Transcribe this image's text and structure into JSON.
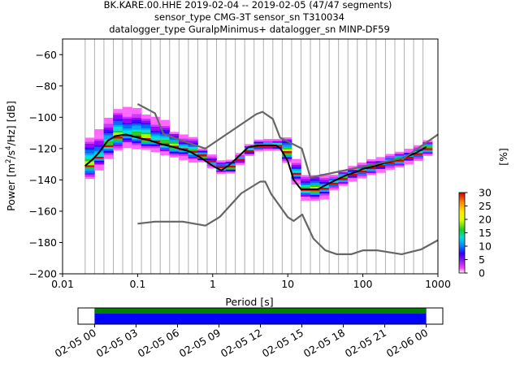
{
  "chart_data": [
    {
      "type": "heatmap",
      "title_lines": [
        "BK.KARE.00.HHE   2019-02-04 -- 2019-02-05  (47/47 segments)",
        "sensor_type CMG-3T sensor_sn T310034",
        "datalogger_type GuralpMinimus+ datalogger_sn MINP-DF59"
      ],
      "xlabel": "Period [s]",
      "ylabel_parts": [
        "Power [m",
        "2",
        "/s",
        "4",
        "/Hz] [dB]"
      ],
      "xscale": "log",
      "xlim": [
        0.01,
        1000
      ],
      "ylim": [
        -200,
        -50
      ],
      "x_ticks": [
        0.01,
        0.1,
        1,
        10,
        100,
        1000
      ],
      "x_tick_labels": [
        "0.01",
        "0.1",
        "1",
        "10",
        "100",
        "1000"
      ],
      "y_ticks": [
        -200,
        -180,
        -160,
        -140,
        -120,
        -100,
        -80,
        -60
      ],
      "y_tick_labels": [
        "−200",
        "−180",
        "−160",
        "−140",
        "−120",
        "−100",
        "−80",
        "−60"
      ],
      "grid": "vertical, per period bin",
      "series": [
        {
          "role": "mean psd",
          "color": "#000000",
          "x": [
            0.02,
            0.025,
            0.03,
            0.04,
            0.05,
            0.07,
            0.1,
            0.15,
            0.2,
            0.3,
            0.5,
            0.7,
            1.0,
            1.3,
            1.6,
            2.0,
            3.0,
            4.0,
            5.0,
            7.0,
            8.0,
            10,
            12,
            15,
            20,
            25,
            30,
            40,
            60,
            80,
            100,
            150,
            200,
            300,
            500,
            700
          ],
          "y": [
            -131,
            -127,
            -123,
            -115,
            -112,
            -111,
            -113,
            -115,
            -117,
            -119,
            -122,
            -126,
            -131,
            -134,
            -131,
            -127,
            -119,
            -118,
            -118,
            -118,
            -120,
            -128,
            -140,
            -146,
            -146,
            -146,
            -144,
            -141,
            -137,
            -135,
            -133,
            -131,
            -129,
            -127,
            -123,
            -119
          ]
        },
        {
          "role": "noise model (upper)",
          "color": "#666666",
          "x": [
            0.1,
            0.17,
            0.22,
            0.32,
            0.8,
            3.8,
            4.6,
            6.3,
            7.9,
            15.4,
            20,
            354.8,
            1000
          ],
          "y": [
            -91.5,
            -97.4,
            -110.5,
            -113.5,
            -120,
            -98,
            -96.5,
            -101,
            -113,
            -120,
            -138.5,
            -126,
            -111
          ]
        },
        {
          "role": "noise model (lower)",
          "color": "#666666",
          "x": [
            0.1,
            0.17,
            0.4,
            0.8,
            1.24,
            2.4,
            4.3,
            5.0,
            6.0,
            10,
            12,
            15.6,
            21.9,
            31.6,
            45,
            70,
            101,
            154,
            328,
            600,
            1000
          ],
          "y": [
            -168,
            -166.7,
            -166.7,
            -169.2,
            -163.7,
            -148.6,
            -141.1,
            -141.1,
            -149,
            -163.8,
            -166.2,
            -162.1,
            -177.5,
            -185,
            -187.5,
            -187.5,
            -185,
            -185,
            -187.5,
            -184.4,
            -178.5
          ]
        }
      ],
      "colorbar": {
        "label": "[%]",
        "range": [
          0,
          30
        ],
        "ticks": [
          0,
          5,
          10,
          15,
          20,
          25,
          30
        ],
        "tick_labels": [
          "0",
          "5",
          "10",
          "15",
          "20",
          "25",
          "30"
        ]
      }
    },
    {
      "type": "timeline",
      "x_tick_labels": [
        "02-05 00",
        "02-05 03",
        "02-05 06",
        "02-05 09",
        "02-05 12",
        "02-05 15",
        "02-05 18",
        "02-05 21",
        "02-06 00"
      ],
      "x_tick_hours": [
        0,
        3,
        6,
        9,
        12,
        15,
        18,
        21,
        24
      ],
      "xlim_hours": [
        -1.2,
        25.2
      ],
      "coverage_hours": [
        0,
        24
      ],
      "bands": [
        {
          "role": "data",
          "color": "#0000ff"
        },
        {
          "role": "psd",
          "color": "#008000"
        }
      ]
    }
  ]
}
